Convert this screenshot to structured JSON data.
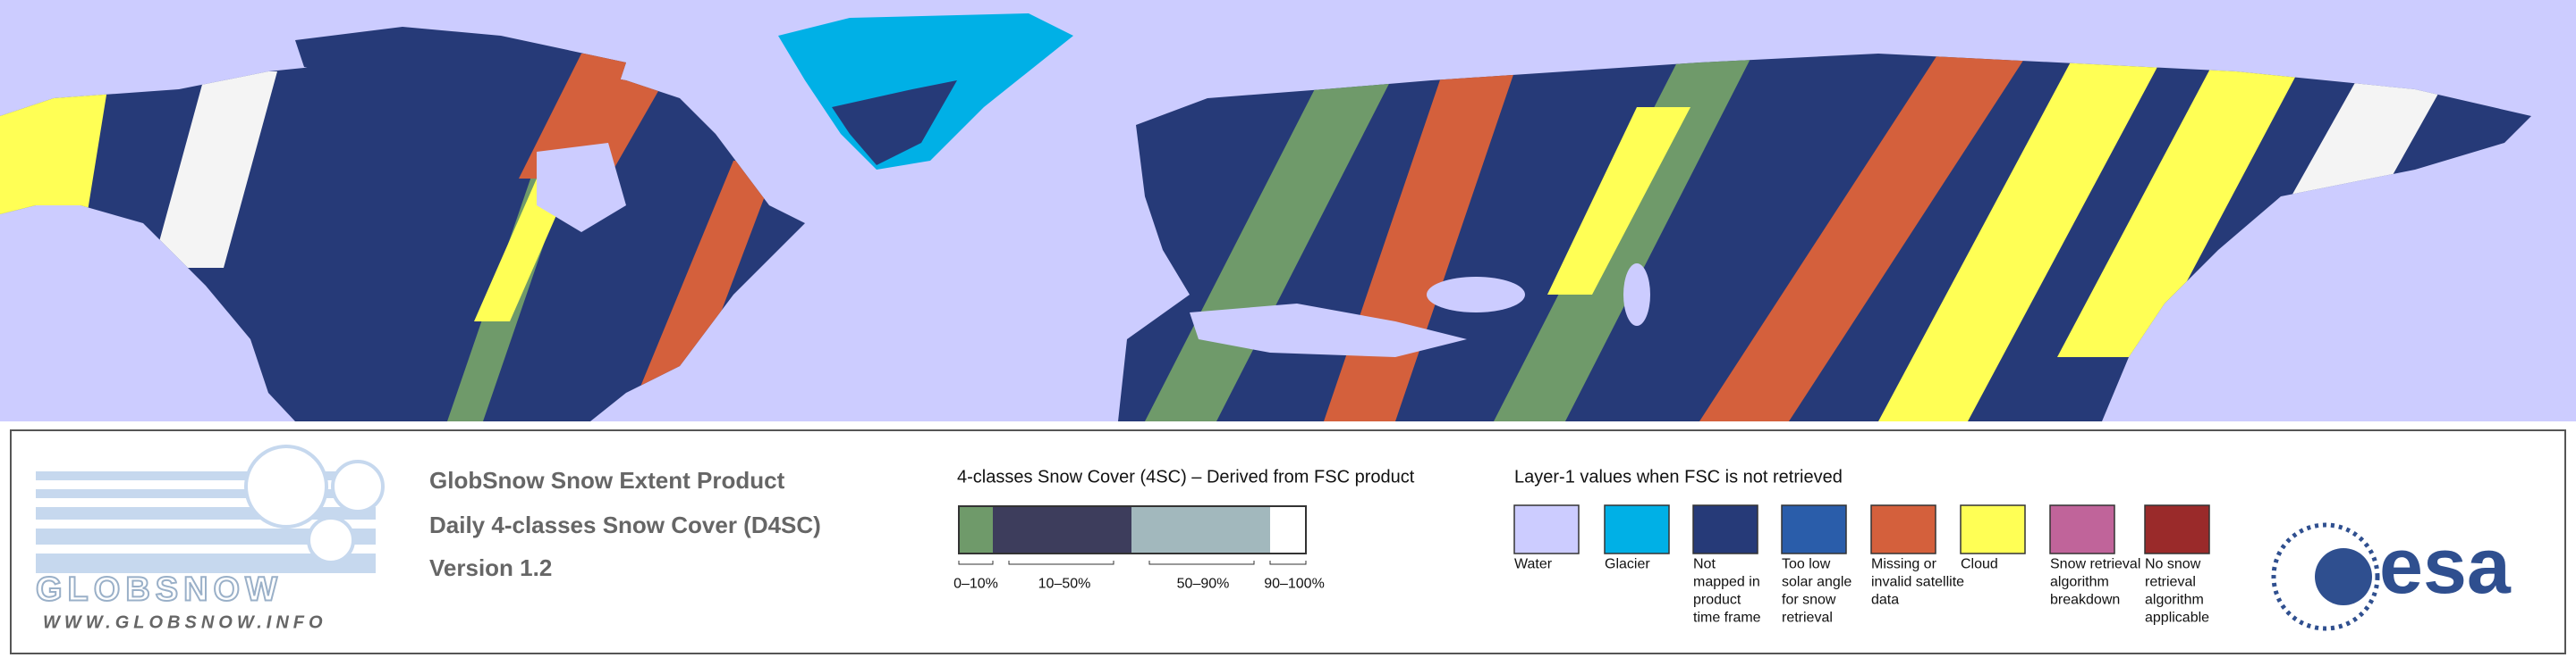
{
  "logo": {
    "name": "GLOBSNOW",
    "url": "WWW.GLOBSNOW.INFO"
  },
  "product": {
    "lines": [
      "GlobSnow Snow Extent Product",
      "Daily 4-classes Snow Cover (D4SC)",
      "Version 1.2"
    ]
  },
  "legend_4sc": {
    "title": "4-classes Snow Cover (4SC) – Derived from FSC product",
    "classes": [
      "0–10%",
      "10–50%",
      "50–90%",
      "90–100%"
    ]
  },
  "layer1": {
    "title": "Layer-1 values when FSC is not retrieved",
    "items": [
      {
        "lines": [
          "Water"
        ]
      },
      {
        "lines": [
          "Glacier"
        ]
      },
      {
        "lines": [
          "Not",
          "mapped in",
          "product",
          "time frame"
        ]
      },
      {
        "lines": [
          "Too low",
          "solar angle",
          "for snow",
          "retrieval"
        ]
      },
      {
        "lines": [
          "Missing or",
          "invalid satellite",
          "data"
        ]
      },
      {
        "lines": [
          "Cloud"
        ]
      },
      {
        "lines": [
          "Snow retrieval",
          "algorithm",
          "breakdown"
        ]
      },
      {
        "lines": [
          "No snow",
          "retrieval",
          "algorithm",
          "applicable"
        ]
      }
    ]
  },
  "agency": "esa"
}
